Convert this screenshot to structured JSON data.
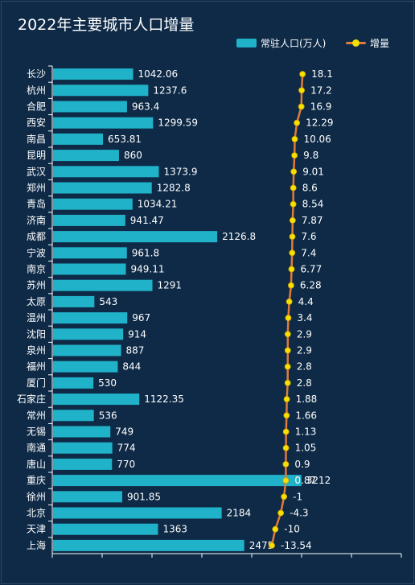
{
  "colors": {
    "background": "#0e2a47",
    "bar": "#20b2c8",
    "line": "#e07b39",
    "marker": "#f5e000",
    "text": "#ffffff",
    "axis": "#ffffff"
  },
  "chart_data": {
    "type": "bar",
    "orientation": "horizontal",
    "title": "2022年主要城市人口增量",
    "legend_position": "top-right",
    "grid": false,
    "categories": [
      "长沙",
      "杭州",
      "合肥",
      "西安",
      "南昌",
      "昆明",
      "武汉",
      "郑州",
      "青岛",
      "济南",
      "成都",
      "宁波",
      "南京",
      "苏州",
      "太原",
      "温州",
      "沈阳",
      "泉州",
      "福州",
      "厦门",
      "石家庄",
      "常州",
      "无锡",
      "南通",
      "唐山",
      "重庆",
      "徐州",
      "北京",
      "天津",
      "上海"
    ],
    "series": [
      {
        "name": "常驻人口(万人)",
        "type": "bar",
        "values": [
          1042.06,
          1237.6,
          963.4,
          1299.59,
          653.81,
          860,
          1373.9,
          1282.8,
          1034.21,
          941.47,
          2126.8,
          961.8,
          949.11,
          1291,
          543,
          967,
          914,
          887,
          844,
          530,
          1122.35,
          536,
          749,
          774,
          770,
          3212,
          901.85,
          2184,
          1363,
          2475
        ],
        "labels": [
          "1042.06",
          "1237.6",
          "963.4",
          "1299.59",
          "653.81",
          "860",
          "1373.9",
          "1282.8",
          "1034.21",
          "941.47",
          "2126.8",
          "961.8",
          "949.11",
          "1291",
          "543",
          "967",
          "914",
          "887",
          "844",
          "530",
          "1122.35",
          "536",
          "749",
          "774",
          "770",
          "3212",
          "901.85",
          "2184",
          "1363",
          "2475"
        ]
      },
      {
        "name": "增量",
        "type": "line",
        "values": [
          18.1,
          17.2,
          16.9,
          12.29,
          10.06,
          9.8,
          9.01,
          8.6,
          8.54,
          7.87,
          7.6,
          7.4,
          6.77,
          6.28,
          4.4,
          3.4,
          2.9,
          2.9,
          2.8,
          2.8,
          1.88,
          1.66,
          1.13,
          1.05,
          0.9,
          0.87,
          -1,
          -4.3,
          -10,
          -13.54
        ],
        "labels": [
          "18.1",
          "17.2",
          "16.9",
          "12.29",
          "10.06",
          "9.8",
          "9.01",
          "8.6",
          "8.54",
          "7.87",
          "7.6",
          "7.4",
          "6.77",
          "6.28",
          "4.4",
          "3.4",
          "2.9",
          "2.9",
          "2.8",
          "2.8",
          "1.88",
          "1.66",
          "1.13",
          "1.05",
          "0.9",
          "0.87",
          "-1",
          "-4.3",
          "-10",
          "-13.54"
        ]
      }
    ],
    "xlim_bar": [
      0,
      4500
    ],
    "xlim_line": [
      -240,
      120
    ]
  }
}
